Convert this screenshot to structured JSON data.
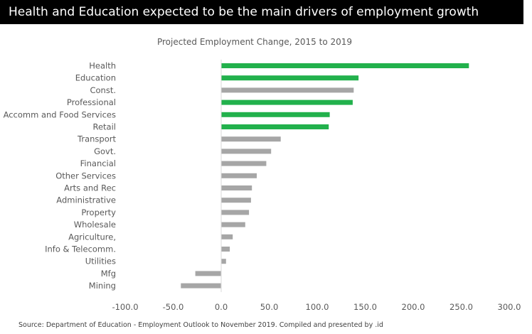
{
  "banner": {
    "title": "Health and Education expected to be the main drivers of employment growth"
  },
  "source_note": "Source:  Department of Education - Employment Outlook to November 2019. Compiled and presented by .id",
  "chart_data": {
    "type": "bar",
    "orientation": "horizontal",
    "title": "Projected Employment Change, 2015 to 2019",
    "xlabel": "",
    "ylabel": "",
    "xlim": [
      -100,
      300
    ],
    "x_ticks": [
      -100,
      -50,
      0,
      50,
      100,
      150,
      200,
      250,
      300
    ],
    "x_tick_labels": [
      "-100.0",
      "-50.0",
      "0.0",
      "50.0",
      "100.0",
      "150.0",
      "200.0",
      "250.0",
      "300.0"
    ],
    "grid": false,
    "categories": [
      "Health",
      "Education",
      "Const.",
      "Professional",
      "Accomm and Food Services",
      "Retail",
      "Transport",
      "Govt.",
      "Financial",
      "Other Services",
      "Arts and Rec",
      "Administrative",
      "Property",
      "Wholesale",
      "Agriculture,",
      "Info & Telecomm.",
      "Utilities",
      "Mfg",
      "Mining"
    ],
    "values": [
      258,
      143,
      138,
      137,
      113,
      112,
      62,
      52,
      47,
      37,
      32,
      31,
      29,
      25,
      12,
      9,
      5,
      -27,
      -42
    ],
    "highlighted": [
      true,
      true,
      false,
      true,
      true,
      true,
      false,
      false,
      false,
      false,
      false,
      false,
      false,
      false,
      false,
      false,
      false,
      false,
      false
    ],
    "colors": {
      "highlight": "#22b14c",
      "default": "#a6a6a6",
      "axis": "#d9d9d9",
      "label": "#595959"
    }
  }
}
